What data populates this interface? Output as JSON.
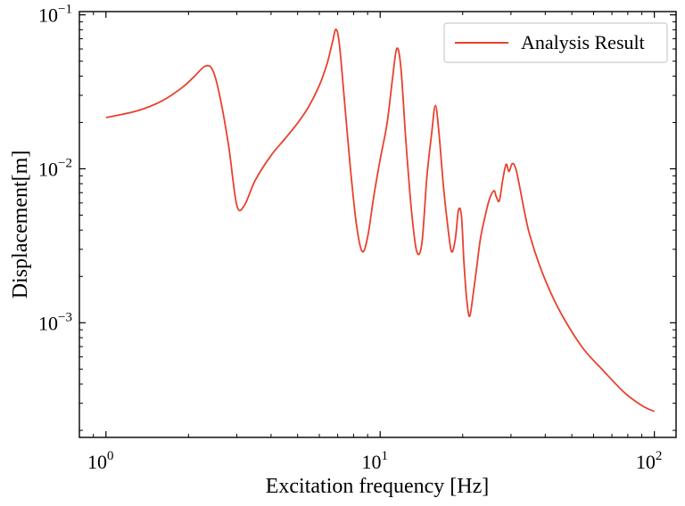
{
  "chart_data": {
    "type": "line",
    "scale": {
      "x": "log",
      "y": "log"
    },
    "xlabel": "Excitation frequency [Hz]",
    "ylabel": "Displacement[m]",
    "xlim": [
      0.8,
      120
    ],
    "ylim": [
      0.00018,
      0.105
    ],
    "x_ticks": [
      {
        "value": 1,
        "base": "10",
        "exp": "0"
      },
      {
        "value": 10,
        "base": "10",
        "exp": "1"
      },
      {
        "value": 100,
        "base": "10",
        "exp": "2"
      }
    ],
    "y_ticks": [
      {
        "value": 0.001,
        "base": "10",
        "exp": "−3"
      },
      {
        "value": 0.01,
        "base": "10",
        "exp": "−2"
      },
      {
        "value": 0.1,
        "base": "10",
        "exp": "−1"
      }
    ],
    "legend": {
      "position": "top-right"
    },
    "series": [
      {
        "name": "Analysis Result",
        "color": "#e8412e",
        "x": [
          1.0,
          1.3,
          1.6,
          1.9,
          2.1,
          2.3,
          2.45,
          2.6,
          2.8,
          3.0,
          3.2,
          3.5,
          4.0,
          4.5,
          5.0,
          5.5,
          6.0,
          6.4,
          6.7,
          6.9,
          7.1,
          7.4,
          7.8,
          8.2,
          8.6,
          9.0,
          9.5,
          10.0,
          10.6,
          11.1,
          11.5,
          11.9,
          12.4,
          13.0,
          13.6,
          14.2,
          14.8,
          15.4,
          15.9,
          16.4,
          17.0,
          17.6,
          18.2,
          18.8,
          19.3,
          19.8,
          20.2,
          20.7,
          21.2,
          21.8,
          22.5,
          23.2,
          24.0,
          25.0,
          26.0,
          26.5,
          27.2,
          28.0,
          28.8,
          29.5,
          30.3,
          31.2,
          32.2,
          33.5,
          35.0,
          38.0,
          42.0,
          47.0,
          55.0,
          65.0,
          78.0,
          90.0,
          100.0
        ],
        "values": [
          0.0215,
          0.0238,
          0.0276,
          0.0338,
          0.0398,
          0.0464,
          0.0438,
          0.0298,
          0.0142,
          0.0058,
          0.0058,
          0.0084,
          0.0122,
          0.0157,
          0.0198,
          0.0255,
          0.0348,
          0.048,
          0.0665,
          0.0805,
          0.0645,
          0.0285,
          0.0098,
          0.0043,
          0.0029,
          0.0036,
          0.0068,
          0.0115,
          0.0198,
          0.039,
          0.0605,
          0.0455,
          0.0155,
          0.0054,
          0.0029,
          0.0033,
          0.0088,
          0.0168,
          0.0258,
          0.0168,
          0.0078,
          0.0044,
          0.0029,
          0.0035,
          0.0054,
          0.0049,
          0.0025,
          0.0014,
          0.0011,
          0.0015,
          0.0023,
          0.0035,
          0.0047,
          0.0063,
          0.0072,
          0.0066,
          0.0062,
          0.0085,
          0.0107,
          0.0096,
          0.0108,
          0.0101,
          0.0078,
          0.0054,
          0.0038,
          0.0024,
          0.00155,
          0.00105,
          0.00068,
          0.00049,
          0.00035,
          0.00029,
          0.000265
        ]
      }
    ]
  }
}
